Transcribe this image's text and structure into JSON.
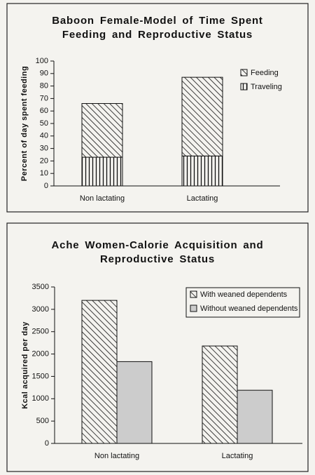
{
  "chart_data": [
    {
      "type": "bar",
      "stacked": true,
      "title": "Baboon Female-Model of Time Spent Feeding and Reproductive Status",
      "y_label": "Percent of day spent feeding",
      "categories": [
        "Non lactating",
        "Lactating"
      ],
      "series": [
        {
          "name": "Feeding",
          "color": "#111111",
          "pattern": "diagonal",
          "values": [
            43,
            63
          ]
        },
        {
          "name": "Traveling",
          "color": "#111111",
          "pattern": "vertical",
          "values": [
            23,
            24
          ]
        }
      ],
      "ylim": [
        0,
        100
      ],
      "yticks": [
        0,
        10,
        20,
        30,
        40,
        50,
        60,
        70,
        80,
        90,
        100
      ],
      "legend": "upper right"
    },
    {
      "type": "bar",
      "stacked": false,
      "title": "Ache Women-Calorie Acquisition and Reproductive Status",
      "y_label": "Kcal acquired per day",
      "categories": [
        "Non lactating",
        "Lactating"
      ],
      "series": [
        {
          "name": "With weaned dependents",
          "color": "#111111",
          "pattern": "diagonal",
          "values": [
            3200,
            2180
          ]
        },
        {
          "name": "Without weaned dependents",
          "color": "#cccccc",
          "values": [
            1830,
            1190
          ]
        }
      ],
      "ylim": [
        0,
        3500
      ],
      "yticks": [
        0,
        500,
        1000,
        1500,
        2000,
        2500,
        3000,
        3500
      ],
      "legend": "upper right"
    }
  ]
}
